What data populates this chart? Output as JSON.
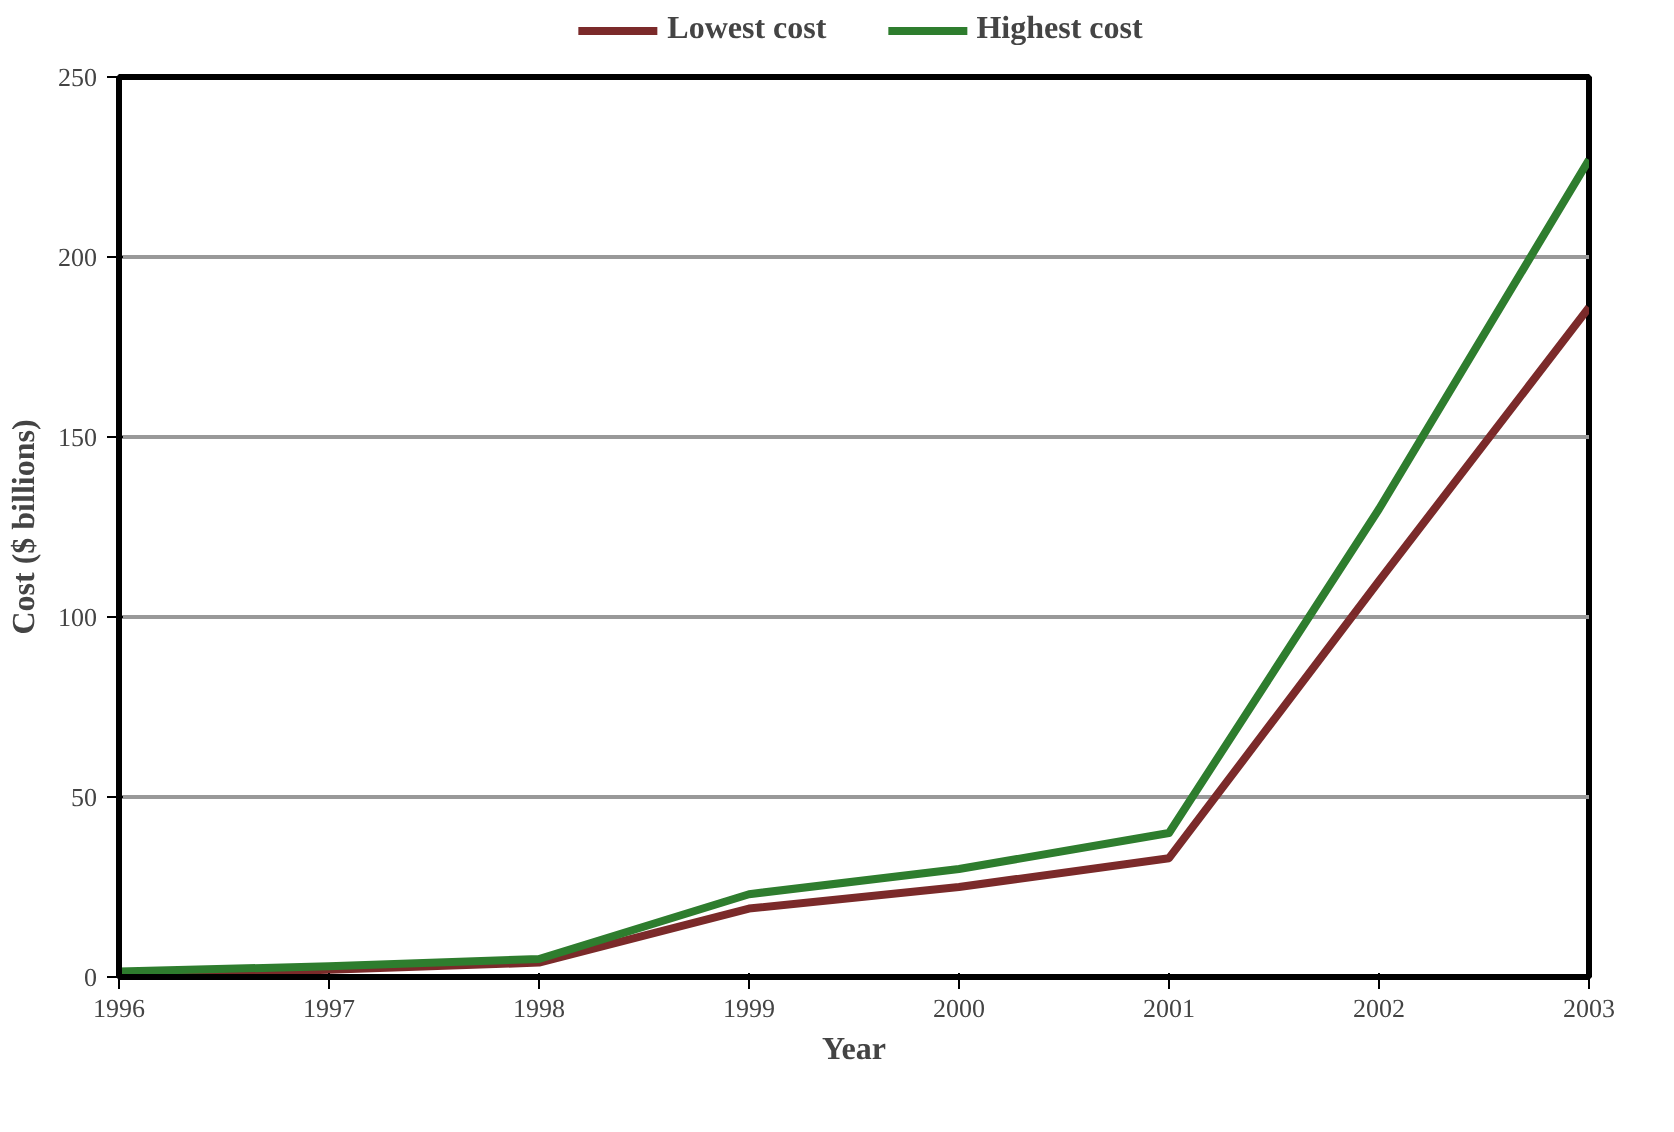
{
  "chart_data": {
    "type": "line",
    "xlabel": "Year",
    "ylabel": "Cost ($ billions)",
    "x": [
      1996,
      1997,
      1998,
      1999,
      2000,
      2001,
      2002,
      2003
    ],
    "series": [
      {
        "name": "Lowest cost",
        "color": "#7b2a2a",
        "values": [
          0.5,
          2,
          4,
          19,
          25,
          33,
          110,
          186
        ]
      },
      {
        "name": "Highest cost",
        "color": "#2e7d2e",
        "values": [
          1.5,
          3,
          5,
          23,
          30,
          40,
          130,
          227
        ]
      }
    ],
    "xlim": [
      1996,
      2003
    ],
    "xticks": [
      1996,
      1997,
      1998,
      1999,
      2000,
      2001,
      2002,
      2003
    ],
    "ylim": [
      0,
      250
    ],
    "yticks": [
      0,
      50,
      100,
      150,
      200,
      250
    ],
    "grid": "y",
    "legend": "top",
    "marker": "none",
    "line_style": "solid"
  }
}
